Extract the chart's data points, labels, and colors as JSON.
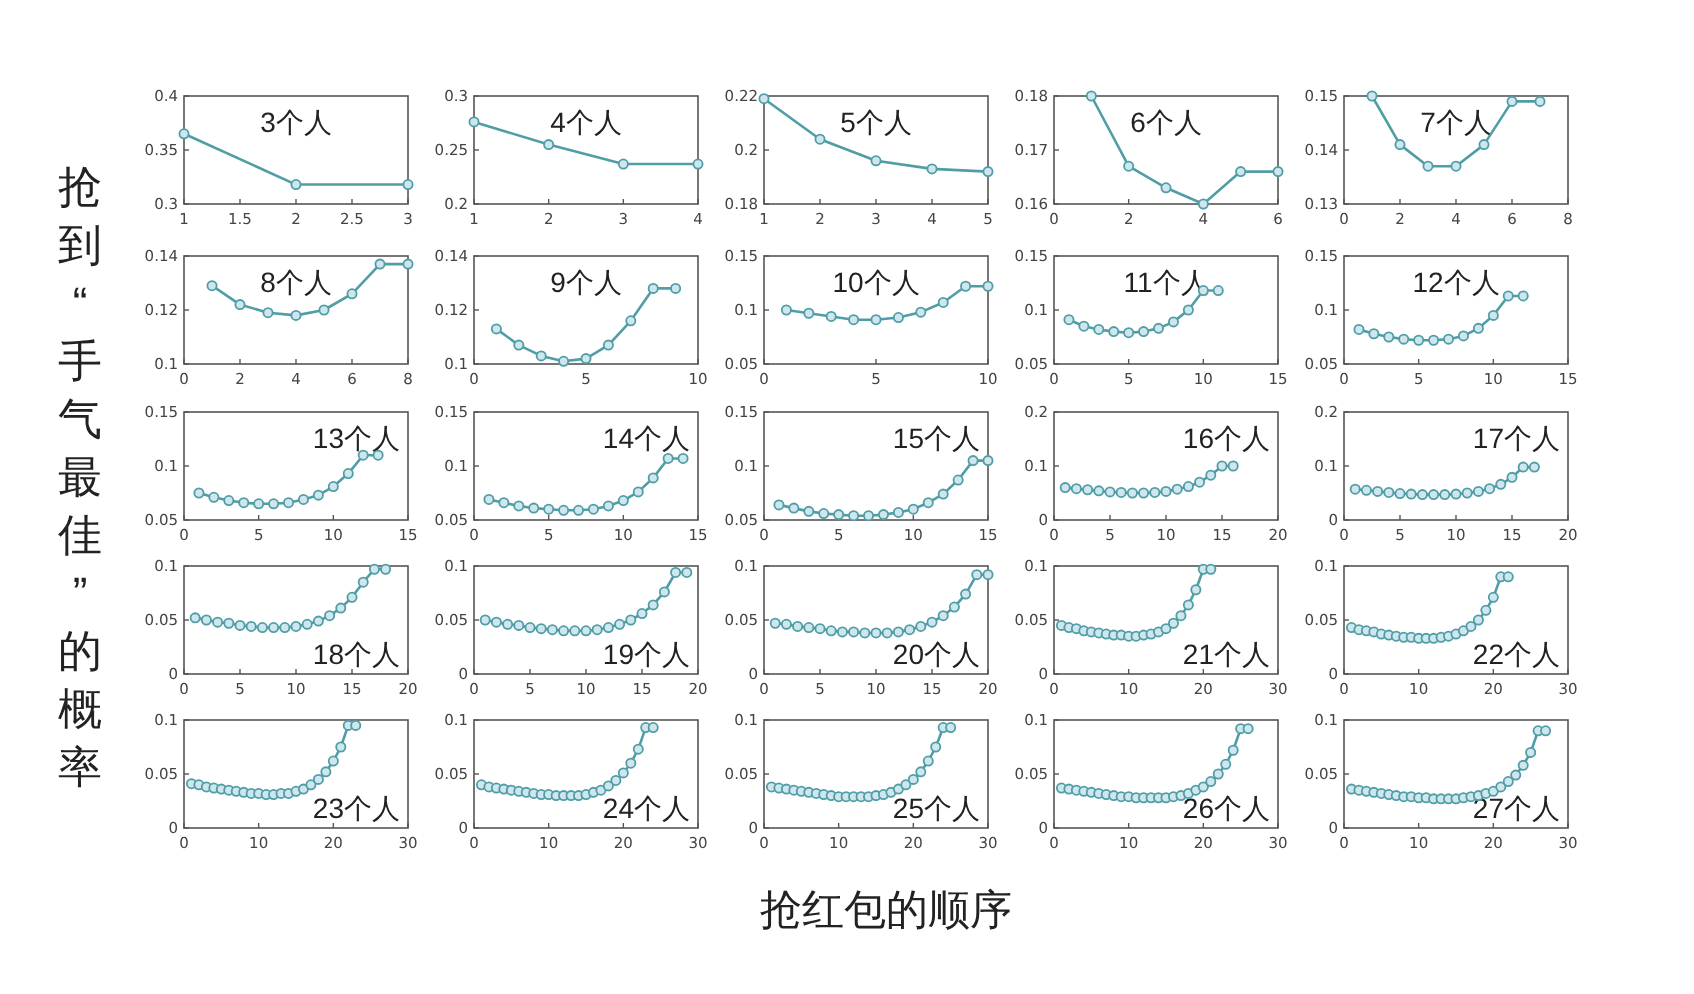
{
  "chart_data": [
    {
      "type": "line",
      "title": "3个人",
      "x": [
        1,
        2,
        3
      ],
      "values": [
        0.365,
        0.318,
        0.318
      ],
      "xlim": [
        1,
        3
      ],
      "xticks": [
        1,
        1.5,
        2,
        2.5,
        3
      ],
      "ylim": [
        0.3,
        0.4
      ],
      "yticks": [
        0.3,
        0.35,
        0.4
      ],
      "color": "#4f9ea6",
      "marker": "circle"
    },
    {
      "type": "line",
      "title": "4个人",
      "x": [
        1,
        2,
        3,
        4
      ],
      "values": [
        0.276,
        0.255,
        0.237,
        0.237
      ],
      "xlim": [
        1,
        4
      ],
      "xticks": [
        1,
        2,
        3,
        4
      ],
      "ylim": [
        0.2,
        0.3
      ],
      "yticks": [
        0.2,
        0.25,
        0.3
      ],
      "color": "#4f9ea6",
      "marker": "circle"
    },
    {
      "type": "line",
      "title": "5个人",
      "x": [
        1,
        2,
        3,
        4,
        5
      ],
      "values": [
        0.219,
        0.204,
        0.196,
        0.193,
        0.192
      ],
      "xlim": [
        1,
        5
      ],
      "xticks": [
        1,
        2,
        3,
        4,
        5
      ],
      "ylim": [
        0.18,
        0.22
      ],
      "yticks": [
        0.18,
        0.2,
        0.22
      ],
      "color": "#4f9ea6",
      "marker": "circle"
    },
    {
      "type": "line",
      "title": "6个人",
      "x": [
        1,
        2,
        3,
        4,
        5,
        6
      ],
      "values": [
        0.18,
        0.167,
        0.163,
        0.16,
        0.166,
        0.166
      ],
      "xlim": [
        0,
        6
      ],
      "xticks": [
        0,
        2,
        4,
        6
      ],
      "ylim": [
        0.16,
        0.18
      ],
      "yticks": [
        0.16,
        0.17,
        0.18
      ],
      "color": "#4f9ea6",
      "marker": "circle"
    },
    {
      "type": "line",
      "title": "7个人",
      "x": [
        1,
        2,
        3,
        4,
        5,
        6,
        7
      ],
      "values": [
        0.15,
        0.141,
        0.137,
        0.137,
        0.141,
        0.149,
        0.149
      ],
      "xlim": [
        0,
        8
      ],
      "xticks": [
        0,
        2,
        4,
        6,
        8
      ],
      "ylim": [
        0.13,
        0.15
      ],
      "yticks": [
        0.13,
        0.14,
        0.15
      ],
      "color": "#4f9ea6",
      "marker": "circle"
    },
    {
      "type": "line",
      "title": "8个人",
      "x": [
        1,
        2,
        3,
        4,
        5,
        6,
        7,
        8
      ],
      "values": [
        0.129,
        0.122,
        0.119,
        0.118,
        0.12,
        0.126,
        0.137,
        0.137
      ],
      "xlim": [
        0,
        8
      ],
      "xticks": [
        0,
        2,
        4,
        6,
        8
      ],
      "ylim": [
        0.1,
        0.14
      ],
      "yticks": [
        0.1,
        0.12,
        0.14
      ],
      "color": "#4f9ea6",
      "marker": "circle"
    },
    {
      "type": "line",
      "title": "9个人",
      "x": [
        1,
        2,
        3,
        4,
        5,
        6,
        7,
        8,
        9
      ],
      "values": [
        0.113,
        0.107,
        0.103,
        0.101,
        0.102,
        0.107,
        0.116,
        0.128,
        0.128
      ],
      "xlim": [
        0,
        10
      ],
      "xticks": [
        0,
        5,
        10
      ],
      "ylim": [
        0.1,
        0.14
      ],
      "yticks": [
        0.1,
        0.12,
        0.14
      ],
      "color": "#4f9ea6",
      "marker": "circle"
    },
    {
      "type": "line",
      "title": "10个人",
      "x": [
        1,
        2,
        3,
        4,
        5,
        6,
        7,
        8,
        9,
        10
      ],
      "values": [
        0.1,
        0.097,
        0.094,
        0.091,
        0.091,
        0.093,
        0.098,
        0.107,
        0.122,
        0.122
      ],
      "xlim": [
        0,
        10
      ],
      "xticks": [
        0,
        5,
        10
      ],
      "ylim": [
        0.05,
        0.15
      ],
      "yticks": [
        0.05,
        0.1,
        0.15
      ],
      "color": "#4f9ea6",
      "marker": "circle"
    },
    {
      "type": "line",
      "title": "11个人",
      "x": [
        1,
        2,
        3,
        4,
        5,
        6,
        7,
        8,
        9,
        10,
        11
      ],
      "values": [
        0.091,
        0.085,
        0.082,
        0.08,
        0.079,
        0.08,
        0.083,
        0.089,
        0.1,
        0.118,
        0.118
      ],
      "xlim": [
        0,
        15
      ],
      "xticks": [
        0,
        5,
        10,
        15
      ],
      "ylim": [
        0.05,
        0.15
      ],
      "yticks": [
        0.05,
        0.1,
        0.15
      ],
      "color": "#4f9ea6",
      "marker": "circle"
    },
    {
      "type": "line",
      "title": "12个人",
      "x": [
        1,
        2,
        3,
        4,
        5,
        6,
        7,
        8,
        9,
        10,
        11,
        12
      ],
      "values": [
        0.082,
        0.078,
        0.075,
        0.073,
        0.072,
        0.072,
        0.073,
        0.076,
        0.083,
        0.095,
        0.113,
        0.113
      ],
      "xlim": [
        0,
        15
      ],
      "xticks": [
        0,
        5,
        10,
        15
      ],
      "ylim": [
        0.05,
        0.15
      ],
      "yticks": [
        0.05,
        0.1,
        0.15
      ],
      "color": "#4f9ea6",
      "marker": "circle"
    },
    {
      "type": "line",
      "title": "13个人",
      "ylabel": "抢到“手气最佳”的概率",
      "x": [
        1,
        2,
        3,
        4,
        5,
        6,
        7,
        8,
        9,
        10,
        11,
        12,
        13
      ],
      "values": [
        0.075,
        0.071,
        0.068,
        0.066,
        0.065,
        0.065,
        0.066,
        0.069,
        0.073,
        0.081,
        0.093,
        0.11,
        0.11
      ],
      "xlim": [
        0,
        15
      ],
      "xticks": [
        0,
        5,
        10,
        15
      ],
      "ylim": [
        0.05,
        0.15
      ],
      "yticks": [
        0.05,
        0.1,
        0.15
      ],
      "color": "#4f9ea6",
      "marker": "circle"
    },
    {
      "type": "line",
      "title": "14个人",
      "x": [
        1,
        2,
        3,
        4,
        5,
        6,
        7,
        8,
        9,
        10,
        11,
        12,
        13,
        14
      ],
      "values": [
        0.069,
        0.066,
        0.063,
        0.061,
        0.06,
        0.059,
        0.059,
        0.06,
        0.063,
        0.068,
        0.076,
        0.089,
        0.107,
        0.107
      ],
      "xlim": [
        0,
        15
      ],
      "xticks": [
        0,
        5,
        10,
        15
      ],
      "ylim": [
        0.05,
        0.15
      ],
      "yticks": [
        0.05,
        0.1,
        0.15
      ],
      "color": "#4f9ea6",
      "marker": "circle"
    },
    {
      "type": "line",
      "title": "15个人",
      "x": [
        1,
        2,
        3,
        4,
        5,
        6,
        7,
        8,
        9,
        10,
        11,
        12,
        13,
        14,
        15
      ],
      "values": [
        0.064,
        0.061,
        0.058,
        0.056,
        0.055,
        0.054,
        0.054,
        0.055,
        0.057,
        0.06,
        0.066,
        0.074,
        0.087,
        0.105,
        0.105
      ],
      "xlim": [
        0,
        15
      ],
      "xticks": [
        0,
        5,
        10,
        15
      ],
      "ylim": [
        0.05,
        0.15
      ],
      "yticks": [
        0.05,
        0.1,
        0.15
      ],
      "color": "#4f9ea6",
      "marker": "circle"
    },
    {
      "type": "line",
      "title": "16个人",
      "x": [
        1,
        2,
        3,
        4,
        5,
        6,
        7,
        8,
        9,
        10,
        11,
        12,
        13,
        14,
        15,
        16
      ],
      "values": [
        0.06,
        0.058,
        0.056,
        0.054,
        0.052,
        0.051,
        0.05,
        0.05,
        0.051,
        0.053,
        0.057,
        0.062,
        0.07,
        0.083,
        0.1,
        0.1
      ],
      "xlim": [
        0,
        20
      ],
      "xticks": [
        0,
        5,
        10,
        15,
        20
      ],
      "ylim": [
        0,
        0.2
      ],
      "yticks": [
        0,
        0.1,
        0.2
      ],
      "color": "#4f9ea6",
      "marker": "circle"
    },
    {
      "type": "line",
      "title": "17个人",
      "x": [
        1,
        2,
        3,
        4,
        5,
        6,
        7,
        8,
        9,
        10,
        11,
        12,
        13,
        14,
        15,
        16,
        17
      ],
      "values": [
        0.057,
        0.055,
        0.053,
        0.051,
        0.049,
        0.048,
        0.047,
        0.047,
        0.047,
        0.048,
        0.05,
        0.053,
        0.058,
        0.066,
        0.079,
        0.098,
        0.098
      ],
      "xlim": [
        0,
        20
      ],
      "xticks": [
        0,
        5,
        10,
        15,
        20
      ],
      "ylim": [
        0,
        0.2
      ],
      "yticks": [
        0,
        0.1,
        0.2
      ],
      "color": "#4f9ea6",
      "marker": "circle"
    },
    {
      "type": "line",
      "title": "18个人",
      "x": [
        1,
        2,
        3,
        4,
        5,
        6,
        7,
        8,
        9,
        10,
        11,
        12,
        13,
        14,
        15,
        16,
        17,
        18
      ],
      "values": [
        0.052,
        0.05,
        0.048,
        0.047,
        0.045,
        0.044,
        0.043,
        0.043,
        0.043,
        0.044,
        0.046,
        0.049,
        0.054,
        0.061,
        0.071,
        0.085,
        0.097,
        0.097
      ],
      "xlim": [
        0,
        20
      ],
      "xticks": [
        0,
        5,
        10,
        15,
        20
      ],
      "ylim": [
        0,
        0.1
      ],
      "yticks": [
        0,
        0.05,
        0.1
      ],
      "color": "#4f9ea6",
      "marker": "circle"
    },
    {
      "type": "line",
      "title": "19个人",
      "x": [
        1,
        2,
        3,
        4,
        5,
        6,
        7,
        8,
        9,
        10,
        11,
        12,
        13,
        14,
        15,
        16,
        17,
        18,
        19
      ],
      "values": [
        0.05,
        0.048,
        0.046,
        0.045,
        0.043,
        0.042,
        0.041,
        0.04,
        0.04,
        0.04,
        0.041,
        0.043,
        0.046,
        0.05,
        0.056,
        0.064,
        0.076,
        0.094,
        0.094
      ],
      "xlim": [
        0,
        20
      ],
      "xticks": [
        0,
        5,
        10,
        15,
        20
      ],
      "ylim": [
        0,
        0.1
      ],
      "yticks": [
        0,
        0.05,
        0.1
      ],
      "color": "#4f9ea6",
      "marker": "circle"
    },
    {
      "type": "line",
      "title": "20个人",
      "x": [
        1,
        2,
        3,
        4,
        5,
        6,
        7,
        8,
        9,
        10,
        11,
        12,
        13,
        14,
        15,
        16,
        17,
        18,
        19,
        20
      ],
      "values": [
        0.047,
        0.046,
        0.044,
        0.043,
        0.042,
        0.04,
        0.039,
        0.039,
        0.038,
        0.038,
        0.038,
        0.039,
        0.041,
        0.044,
        0.048,
        0.054,
        0.062,
        0.074,
        0.092,
        0.092
      ],
      "xlim": [
        0,
        20
      ],
      "xticks": [
        0,
        5,
        10,
        15,
        20
      ],
      "ylim": [
        0,
        0.1
      ],
      "yticks": [
        0,
        0.05,
        0.1
      ],
      "color": "#4f9ea6",
      "marker": "circle"
    },
    {
      "type": "line",
      "title": "21个人",
      "x": [
        1,
        2,
        3,
        4,
        5,
        6,
        7,
        8,
        9,
        10,
        11,
        12,
        13,
        14,
        15,
        16,
        17,
        18,
        19,
        20,
        21
      ],
      "values": [
        0.045,
        0.043,
        0.042,
        0.04,
        0.039,
        0.038,
        0.037,
        0.036,
        0.036,
        0.035,
        0.035,
        0.036,
        0.037,
        0.039,
        0.042,
        0.047,
        0.054,
        0.064,
        0.078,
        0.097,
        0.097
      ],
      "xlim": [
        0,
        30
      ],
      "xticks": [
        0,
        10,
        20,
        30
      ],
      "ylim": [
        0,
        0.1
      ],
      "yticks": [
        0,
        0.05,
        0.1
      ],
      "color": "#4f9ea6",
      "marker": "circle"
    },
    {
      "type": "line",
      "title": "22个人",
      "x": [
        1,
        2,
        3,
        4,
        5,
        6,
        7,
        8,
        9,
        10,
        11,
        12,
        13,
        14,
        15,
        16,
        17,
        18,
        19,
        20,
        21,
        22
      ],
      "values": [
        0.043,
        0.041,
        0.04,
        0.039,
        0.037,
        0.036,
        0.035,
        0.034,
        0.034,
        0.033,
        0.033,
        0.033,
        0.034,
        0.035,
        0.037,
        0.04,
        0.044,
        0.05,
        0.059,
        0.071,
        0.09,
        0.09
      ],
      "xlim": [
        0,
        30
      ],
      "xticks": [
        0,
        10,
        20,
        30
      ],
      "ylim": [
        0,
        0.1
      ],
      "yticks": [
        0,
        0.05,
        0.1
      ],
      "color": "#4f9ea6",
      "marker": "circle"
    },
    {
      "type": "line",
      "title": "23个人",
      "x": [
        1,
        2,
        3,
        4,
        5,
        6,
        7,
        8,
        9,
        10,
        11,
        12,
        13,
        14,
        15,
        16,
        17,
        18,
        19,
        20,
        21,
        22,
        23
      ],
      "values": [
        0.041,
        0.04,
        0.038,
        0.037,
        0.036,
        0.035,
        0.034,
        0.033,
        0.032,
        0.032,
        0.031,
        0.031,
        0.032,
        0.032,
        0.034,
        0.036,
        0.04,
        0.045,
        0.052,
        0.062,
        0.075,
        0.095,
        0.095
      ],
      "xlim": [
        0,
        30
      ],
      "xticks": [
        0,
        10,
        20,
        30
      ],
      "ylim": [
        0,
        0.1
      ],
      "yticks": [
        0,
        0.05,
        0.1
      ],
      "color": "#4f9ea6",
      "marker": "circle"
    },
    {
      "type": "line",
      "title": "24个人",
      "x": [
        1,
        2,
        3,
        4,
        5,
        6,
        7,
        8,
        9,
        10,
        11,
        12,
        13,
        14,
        15,
        16,
        17,
        18,
        19,
        20,
        21,
        22,
        23,
        24
      ],
      "values": [
        0.04,
        0.038,
        0.037,
        0.036,
        0.035,
        0.034,
        0.033,
        0.032,
        0.031,
        0.031,
        0.03,
        0.03,
        0.03,
        0.03,
        0.031,
        0.033,
        0.035,
        0.039,
        0.044,
        0.051,
        0.06,
        0.073,
        0.093,
        0.093
      ],
      "xlim": [
        0,
        30
      ],
      "xticks": [
        0,
        10,
        20,
        30
      ],
      "ylim": [
        0,
        0.1
      ],
      "yticks": [
        0,
        0.05,
        0.1
      ],
      "color": "#4f9ea6",
      "marker": "circle"
    },
    {
      "type": "line",
      "title": "25个人",
      "xlabel": "抢红包的顺序",
      "x": [
        1,
        2,
        3,
        4,
        5,
        6,
        7,
        8,
        9,
        10,
        11,
        12,
        13,
        14,
        15,
        16,
        17,
        18,
        19,
        20,
        21,
        22,
        23,
        24,
        25
      ],
      "values": [
        0.038,
        0.037,
        0.036,
        0.035,
        0.034,
        0.033,
        0.032,
        0.031,
        0.03,
        0.029,
        0.029,
        0.029,
        0.029,
        0.029,
        0.03,
        0.031,
        0.033,
        0.036,
        0.04,
        0.045,
        0.052,
        0.062,
        0.075,
        0.093,
        0.093
      ],
      "xlim": [
        0,
        30
      ],
      "xticks": [
        0,
        10,
        20,
        30
      ],
      "ylim": [
        0,
        0.1
      ],
      "yticks": [
        0,
        0.05,
        0.1
      ],
      "color": "#4f9ea6",
      "marker": "circle"
    },
    {
      "type": "line",
      "title": "26个人",
      "x": [
        1,
        2,
        3,
        4,
        5,
        6,
        7,
        8,
        9,
        10,
        11,
        12,
        13,
        14,
        15,
        16,
        17,
        18,
        19,
        20,
        21,
        22,
        23,
        24,
        25,
        26
      ],
      "values": [
        0.037,
        0.036,
        0.035,
        0.034,
        0.033,
        0.032,
        0.031,
        0.03,
        0.029,
        0.029,
        0.028,
        0.028,
        0.028,
        0.028,
        0.028,
        0.029,
        0.03,
        0.032,
        0.035,
        0.038,
        0.043,
        0.05,
        0.059,
        0.072,
        0.092,
        0.092
      ],
      "xlim": [
        0,
        30
      ],
      "xticks": [
        0,
        10,
        20,
        30
      ],
      "ylim": [
        0,
        0.1
      ],
      "yticks": [
        0,
        0.05,
        0.1
      ],
      "color": "#4f9ea6",
      "marker": "circle"
    },
    {
      "type": "line",
      "title": "27个人",
      "x": [
        1,
        2,
        3,
        4,
        5,
        6,
        7,
        8,
        9,
        10,
        11,
        12,
        13,
        14,
        15,
        16,
        17,
        18,
        19,
        20,
        21,
        22,
        23,
        24,
        25,
        26,
        27
      ],
      "values": [
        0.036,
        0.035,
        0.034,
        0.033,
        0.032,
        0.031,
        0.03,
        0.029,
        0.029,
        0.028,
        0.028,
        0.027,
        0.027,
        0.027,
        0.027,
        0.028,
        0.029,
        0.03,
        0.032,
        0.034,
        0.038,
        0.043,
        0.049,
        0.058,
        0.07,
        0.09,
        0.09
      ],
      "xlim": [
        0,
        30
      ],
      "xticks": [
        0,
        10,
        20,
        30
      ],
      "ylim": [
        0,
        0.1
      ],
      "yticks": [
        0,
        0.05,
        0.1
      ],
      "color": "#4f9ea6",
      "marker": "circle"
    }
  ]
}
